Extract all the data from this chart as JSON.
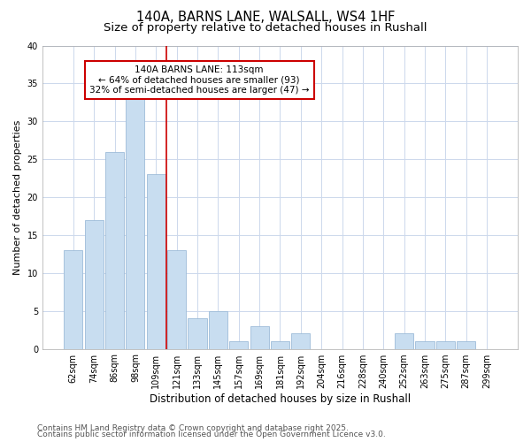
{
  "title1": "140A, BARNS LANE, WALSALL, WS4 1HF",
  "title2": "Size of property relative to detached houses in Rushall",
  "xlabel": "Distribution of detached houses by size in Rushall",
  "ylabel": "Number of detached properties",
  "categories": [
    "62sqm",
    "74sqm",
    "86sqm",
    "98sqm",
    "109sqm",
    "121sqm",
    "133sqm",
    "145sqm",
    "157sqm",
    "169sqm",
    "181sqm",
    "192sqm",
    "204sqm",
    "216sqm",
    "228sqm",
    "240sqm",
    "252sqm",
    "263sqm",
    "275sqm",
    "287sqm",
    "299sqm"
  ],
  "values": [
    13,
    17,
    26,
    33,
    23,
    13,
    4,
    5,
    1,
    3,
    1,
    2,
    0,
    0,
    0,
    0,
    2,
    1,
    1,
    1,
    0
  ],
  "bar_color": "#c8ddf0",
  "bar_edge_color": "#9dbbd8",
  "red_line_x": 4.5,
  "annotation_text": "140A BARNS LANE: 113sqm\n← 64% of detached houses are smaller (93)\n32% of semi-detached houses are larger (47) →",
  "annotation_box_color": "white",
  "annotation_box_edge_color": "#cc0000",
  "red_line_color": "#cc0000",
  "ylim": [
    0,
    40
  ],
  "yticks": [
    0,
    5,
    10,
    15,
    20,
    25,
    30,
    35,
    40
  ],
  "grid_color": "#ccd8ec",
  "background_color": "#ffffff",
  "fig_background_color": "#ffffff",
  "footer1": "Contains HM Land Registry data © Crown copyright and database right 2025.",
  "footer2": "Contains public sector information licensed under the Open Government Licence v3.0.",
  "title_fontsize": 10.5,
  "subtitle_fontsize": 9.5,
  "axis_label_fontsize": 8.5,
  "tick_fontsize": 7,
  "annotation_fontsize": 7.5,
  "footer_fontsize": 6.5,
  "ylabel_fontsize": 8
}
